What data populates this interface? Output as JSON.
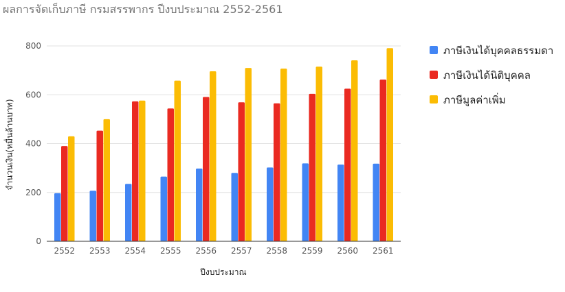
{
  "chart_data": {
    "type": "bar",
    "title": "ผลการจัดเก็บภาษี กรมสรรพากร ปีงบประมาณ 2552-2561",
    "xlabel": "ปีงบประมาณ",
    "ylabel": "จำนวนเงิน(หมื่นล้านบาท)",
    "ylim": [
      0,
      800
    ],
    "yticks": [
      0,
      200,
      400,
      600,
      800
    ],
    "grid": true,
    "legend_position": "right",
    "categories": [
      "2552",
      "2553",
      "2554",
      "2555",
      "2556",
      "2557",
      "2558",
      "2559",
      "2560",
      "2561"
    ],
    "series": [
      {
        "name": "ภาษีเงินได้บุคคลธรรมดา",
        "color": "#4285f4",
        "values": [
          197,
          207,
          235,
          265,
          298,
          280,
          302,
          319,
          314,
          318
        ]
      },
      {
        "name": "ภาษีเงินได้นิติบุคคล",
        "color": "#ea2a21",
        "values": [
          390,
          453,
          573,
          544,
          591,
          569,
          565,
          604,
          625,
          662
        ]
      },
      {
        "name": "ภาษีมูลค่าเพิ่ม",
        "color": "#fbbc04",
        "values": [
          430,
          500,
          576,
          658,
          696,
          710,
          707,
          715,
          741,
          791
        ]
      }
    ]
  }
}
